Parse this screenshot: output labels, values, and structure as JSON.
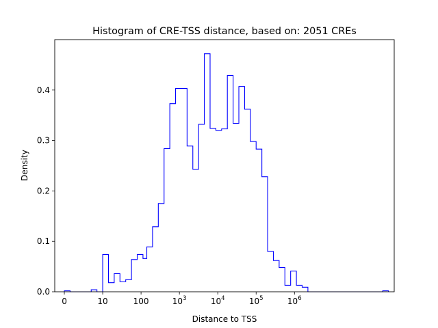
{
  "chart_data": {
    "type": "histogram",
    "title": "Histogram of CRE-TSS distance, based on: 2051 CREs",
    "xlabel": "Distance to TSS",
    "ylabel": "Density",
    "x_scale": "symlog",
    "xlim": [
      -0.25,
      8.6
    ],
    "ylim": [
      0,
      0.5
    ],
    "grid": false,
    "legend": "none",
    "line_color": "#0000ff",
    "x_ticks": [
      {
        "pos": 0,
        "base": "0",
        "exp": ""
      },
      {
        "pos": 1,
        "base": "10",
        "exp": ""
      },
      {
        "pos": 2,
        "base": "100",
        "exp": ""
      },
      {
        "pos": 3,
        "base": "10",
        "exp": "3"
      },
      {
        "pos": 4,
        "base": "10",
        "exp": "4"
      },
      {
        "pos": 5,
        "base": "10",
        "exp": "5"
      },
      {
        "pos": 6,
        "base": "10",
        "exp": "6"
      }
    ],
    "y_ticks": [
      0.0,
      0.1,
      0.2,
      0.3,
      0.4
    ],
    "y_tick_labels": [
      "0.0",
      "0.1",
      "0.2",
      "0.3",
      "0.4"
    ],
    "bin_edges": [
      0,
      0.15,
      0.7,
      0.85,
      1.0,
      1.15,
      1.3,
      1.45,
      1.6,
      1.75,
      1.9,
      2.05,
      2.15,
      2.3,
      2.45,
      2.6,
      2.75,
      2.9,
      3.05,
      3.2,
      3.35,
      3.5,
      3.65,
      3.8,
      3.95,
      4.1,
      4.25,
      4.4,
      4.55,
      4.7,
      4.85,
      5.0,
      5.15,
      5.3,
      5.45,
      5.6,
      5.75,
      5.9,
      6.05,
      6.2,
      6.35,
      8.3,
      8.45
    ],
    "values": [
      0.002,
      0.0,
      0.004,
      0.0,
      0.074,
      0.018,
      0.036,
      0.02,
      0.024,
      0.064,
      0.074,
      0.066,
      0.089,
      0.129,
      0.175,
      0.284,
      0.373,
      0.403,
      0.403,
      0.289,
      0.243,
      0.332,
      0.472,
      0.324,
      0.32,
      0.323,
      0.429,
      0.334,
      0.407,
      0.362,
      0.298,
      0.283,
      0.228,
      0.08,
      0.062,
      0.048,
      0.013,
      0.041,
      0.013,
      0.009,
      0.0,
      0.002
    ]
  }
}
